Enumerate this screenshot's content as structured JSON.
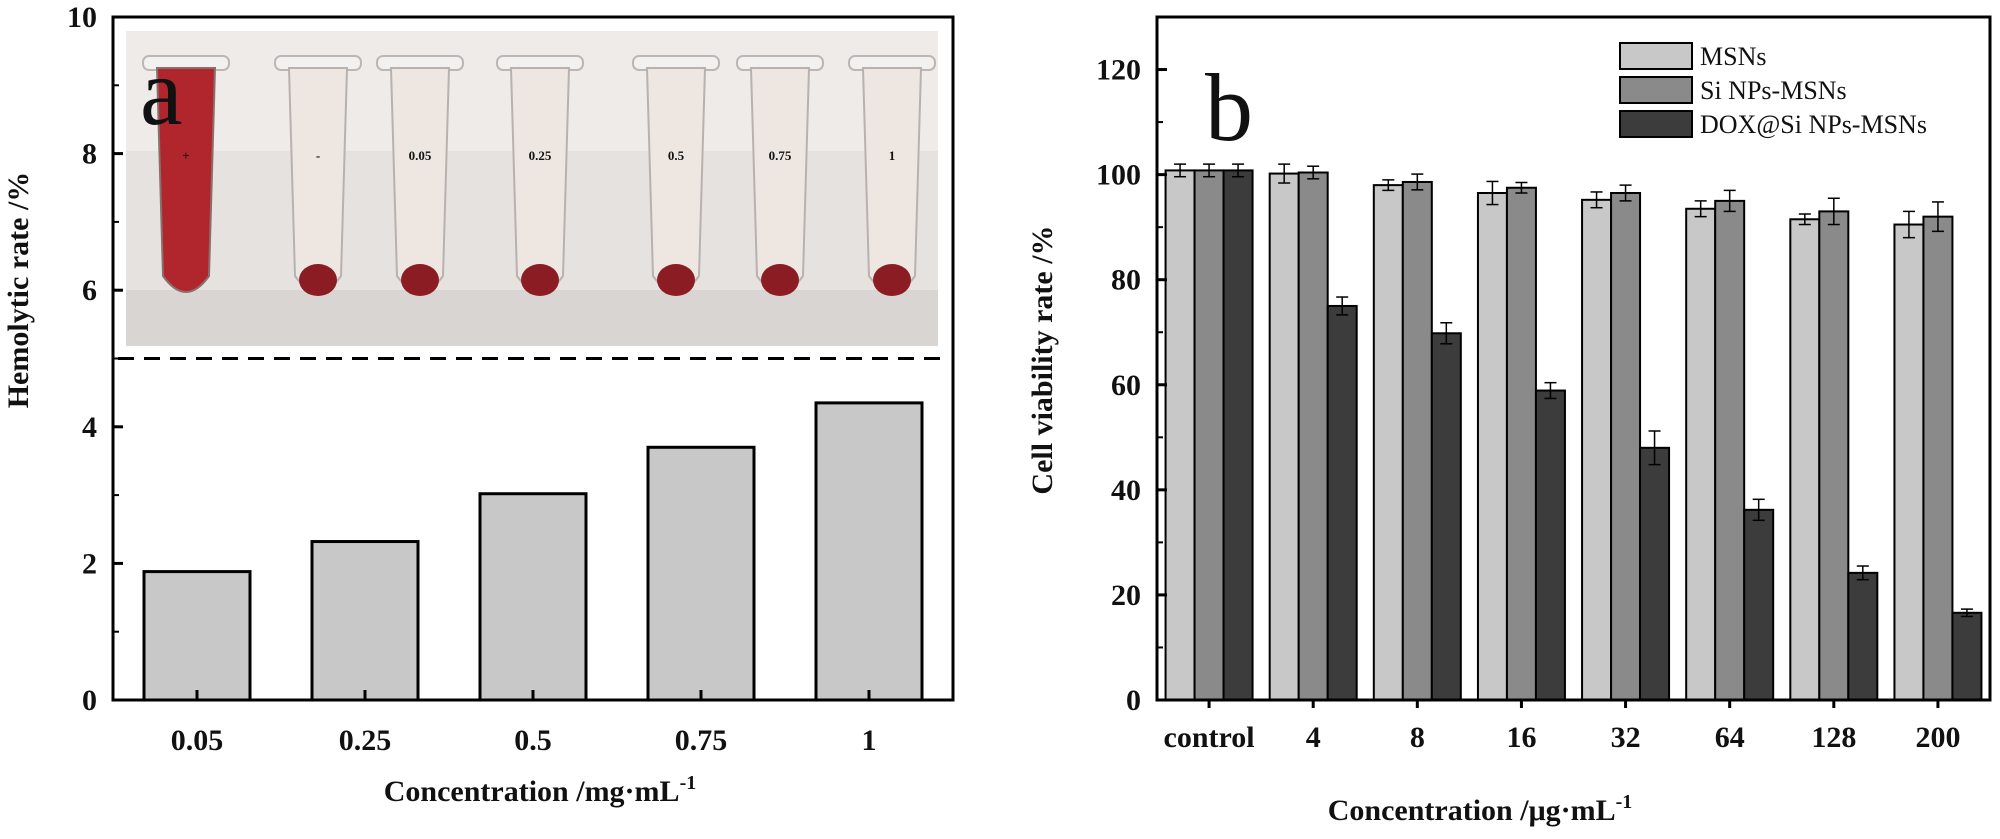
{
  "colors": {
    "bar_light": "#c8c8c8",
    "bar_mid": "#8a8a8a",
    "bar_dark": "#3c3c3c",
    "axis": "#000000",
    "blood": "#b0262c",
    "pellet": "#8c1c24"
  },
  "chart_data": [
    {
      "panel": "a",
      "type": "bar",
      "panel_label": "a",
      "title": "",
      "xlabel": "Concentration /mg·mL",
      "xlabel_sup": "-1",
      "ylabel": "Hemolytic rate /%",
      "categories": [
        "0.05",
        "0.25",
        "0.5",
        "0.75",
        "1"
      ],
      "values": [
        1.88,
        2.32,
        3.02,
        3.7,
        4.35
      ],
      "ylim": [
        0,
        10
      ],
      "yticks": [
        "0",
        "2",
        "4",
        "6",
        "8",
        "10"
      ],
      "reference_line": 5,
      "grid": false,
      "inset_photo": {
        "tube_labels": [
          "+",
          "-",
          "0.05",
          "0.25",
          "0.5",
          "0.75",
          "1"
        ]
      }
    },
    {
      "panel": "b",
      "type": "bar",
      "panel_label": "b",
      "title": "",
      "xlabel": "Concentration /μg·mL",
      "xlabel_sup": "-1",
      "ylabel": "Cell viability rate /%",
      "categories": [
        "control",
        "4",
        "8",
        "16",
        "32",
        "64",
        "128",
        "200"
      ],
      "ylim": [
        0,
        130
      ],
      "yticks": [
        "0",
        "20",
        "40",
        "60",
        "80",
        "100",
        "120"
      ],
      "legend_position": "top-right",
      "grid": false,
      "series": [
        {
          "name": "MSNs",
          "values": [
            100.8,
            100.2,
            98.0,
            96.5,
            95.2,
            93.5,
            91.5,
            90.5
          ],
          "errors": [
            1.2,
            1.8,
            1.0,
            2.2,
            1.5,
            1.5,
            1.0,
            2.5
          ]
        },
        {
          "name": "Si NPs-MSNs",
          "values": [
            100.8,
            100.4,
            98.6,
            97.5,
            96.5,
            95.0,
            93.0,
            92.0
          ],
          "errors": [
            1.2,
            1.2,
            1.5,
            1.0,
            1.5,
            2.0,
            2.5,
            2.8
          ]
        },
        {
          "name": "DOX@Si NPs-MSNs",
          "values": [
            100.8,
            75.0,
            69.8,
            58.9,
            48.0,
            36.2,
            24.2,
            16.6
          ],
          "errors": [
            1.2,
            1.7,
            2.0,
            1.5,
            3.2,
            2.0,
            1.3,
            0.7
          ]
        }
      ]
    }
  ]
}
